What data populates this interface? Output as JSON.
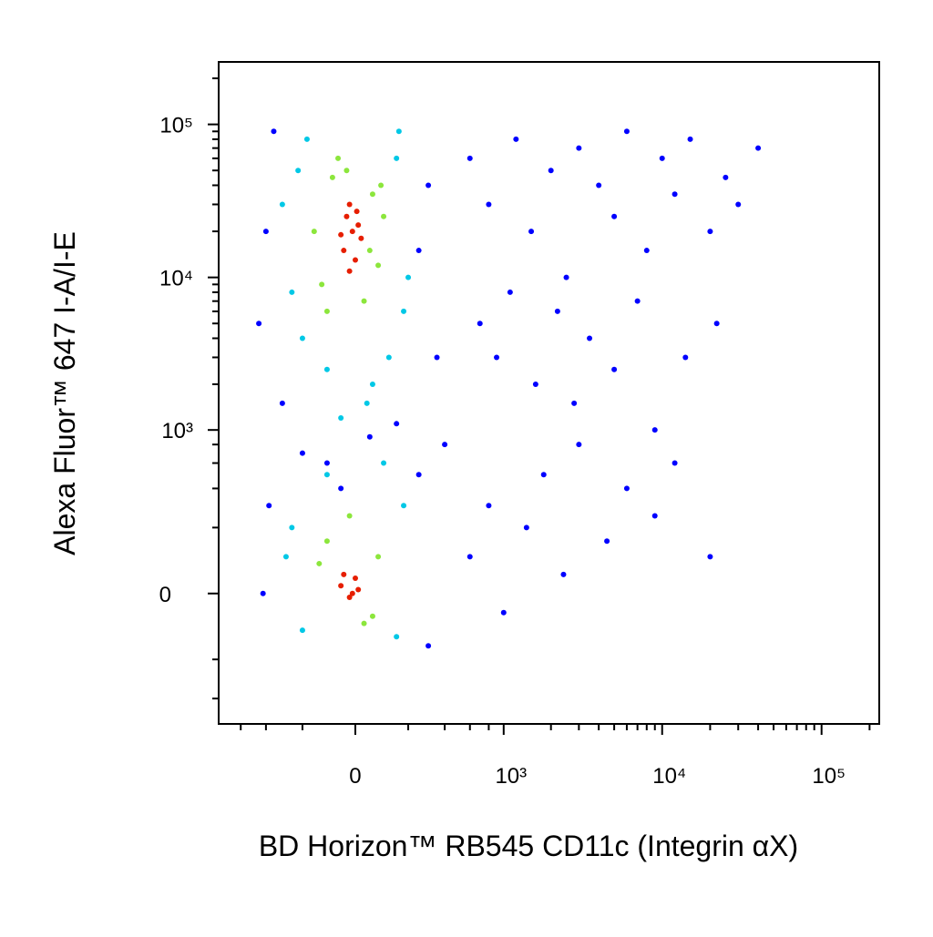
{
  "chart_data": {
    "type": "scatter",
    "xlabel": "BD Horizon™ RB545 CD11c (Integrin αX)",
    "ylabel": "Alexa Fluor™ 647 I-A/I-E",
    "xscale": "biexponential",
    "yscale": "biexponential",
    "xlim": [
      -840,
      230000
    ],
    "ylim": [
      -600,
      256000
    ],
    "xticks": [
      0,
      {
        "value": 1000,
        "label": "10³"
      },
      {
        "value": 10000,
        "label": "10⁴"
      },
      {
        "value": 100000,
        "label": "10⁵"
      }
    ],
    "yticks": [
      0,
      {
        "value": 1000,
        "label": "10³"
      },
      {
        "value": 10000,
        "label": "10⁴"
      },
      {
        "value": 100000,
        "label": "10⁵"
      }
    ],
    "xminorticks": [
      -600,
      -400,
      -200,
      200,
      400,
      600,
      800,
      2000,
      3000,
      4000,
      5000,
      6000,
      7000,
      8000,
      9000,
      20000,
      30000,
      40000,
      50000,
      60000,
      70000,
      80000,
      90000,
      200000
    ],
    "yminorticks": [
      -400,
      -200,
      200,
      400,
      600,
      800,
      2000,
      3000,
      4000,
      5000,
      6000,
      7000,
      8000,
      9000,
      20000,
      30000,
      40000,
      50000,
      60000,
      70000,
      80000,
      90000,
      200000
    ],
    "series": [
      {
        "color": "#0000ff",
        "x": [
          -400,
          250,
          -450,
          300,
          -350,
          350,
          -300,
          400,
          -420,
          300,
          -380,
          250,
          -100,
          50,
          -200,
          150,
          -50,
          600,
          800,
          1200,
          1500,
          2000,
          2500,
          3000,
          4000,
          5000,
          6000,
          8000,
          10000,
          12000,
          15000,
          20000,
          25000,
          30000,
          40000,
          700,
          900,
          1100,
          1600,
          2200,
          2800,
          3500,
          5000,
          7000,
          9000,
          14000,
          22000,
          600,
          800,
          1000,
          1400,
          1800,
          2400,
          3000,
          4500,
          6000,
          9000,
          12000,
          20000
        ],
        "values": [
          20000,
          15000,
          5000,
          40000,
          90000,
          3000,
          1500,
          800,
          0,
          -150,
          300,
          500,
          600,
          900,
          700,
          1100,
          400,
          60000,
          30000,
          80000,
          20000,
          50000,
          10000,
          70000,
          40000,
          25000,
          90000,
          15000,
          60000,
          35000,
          80000,
          20000,
          45000,
          30000,
          70000,
          5000,
          3000,
          8000,
          2000,
          6000,
          1500,
          4000,
          2500,
          7000,
          1000,
          3000,
          5000,
          100,
          300,
          -50,
          200,
          500,
          50,
          800,
          150,
          400,
          250,
          600,
          100
        ]
      },
      {
        "color": "#00c8e6",
        "x": [
          -250,
          150,
          -200,
          180,
          -300,
          120,
          -180,
          200,
          -100,
          60,
          -220,
          160,
          -250,
          180,
          -200,
          150,
          -100,
          100,
          -50,
          40,
          -280
        ],
        "values": [
          8000,
          60000,
          4000,
          6000,
          30000,
          3000,
          80000,
          10000,
          2500,
          2000,
          50000,
          90000,
          200,
          300,
          -100,
          -120,
          500,
          600,
          1200,
          1500,
          100
        ]
      },
      {
        "color": "#8ce63c",
        "x": [
          -120,
          60,
          -80,
          80,
          -150,
          30,
          -30,
          100,
          -100,
          50,
          -60,
          90,
          -130,
          60,
          -100,
          80,
          -20,
          30
        ],
        "values": [
          9000,
          35000,
          45000,
          12000,
          20000,
          7000,
          50000,
          25000,
          6000,
          15000,
          60000,
          40000,
          80,
          -60,
          150,
          100,
          250,
          -80
        ]
      },
      {
        "color": "#e61e00",
        "x": [
          -40,
          -10,
          20,
          -30,
          0,
          -20,
          10,
          -50,
          -20,
          5,
          -50,
          -20,
          0,
          -40,
          -10,
          10
        ],
        "values": [
          15000,
          20000,
          18000,
          25000,
          13000,
          30000,
          22000,
          19000,
          11000,
          27000,
          20,
          -10,
          40,
          50,
          0,
          10
        ]
      }
    ]
  }
}
